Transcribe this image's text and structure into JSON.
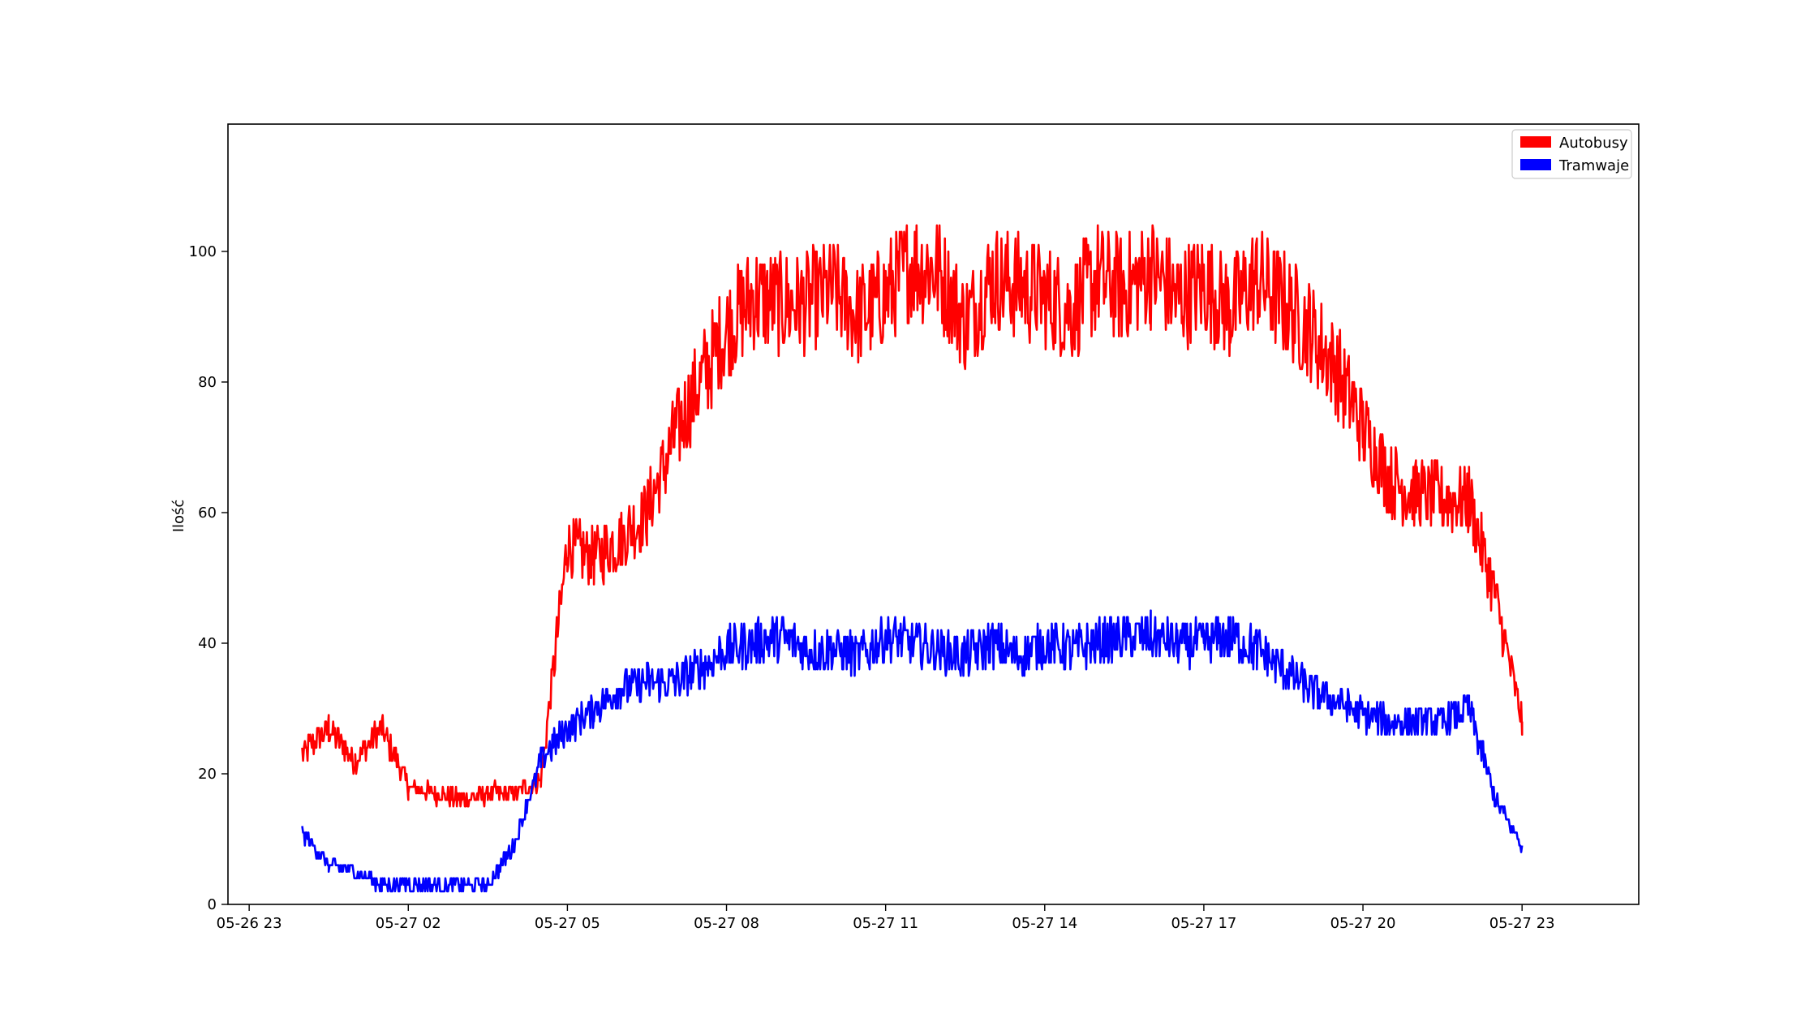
{
  "chart_data": {
    "type": "line",
    "title": "",
    "xlabel": "",
    "ylabel": "Ilość",
    "x_ticks": [
      "05-26 23",
      "05-27 02",
      "05-27 05",
      "05-27 08",
      "05-27 11",
      "05-27 14",
      "05-27 17",
      "05-27 20",
      "05-27 23"
    ],
    "x_unit": "hours since 05-26 23:00",
    "xlim": [
      -0.4,
      26.2
    ],
    "ylim": [
      0,
      119.5
    ],
    "y_ticks": [
      0,
      20,
      40,
      60,
      80,
      100
    ],
    "grid": false,
    "legend_position": "top-right",
    "series": [
      {
        "name": "Autobusy",
        "color": "#ff0000",
        "x": [
          1.0,
          1.5,
          2.0,
          2.5,
          3.0,
          3.5,
          4.0,
          4.5,
          5.0,
          5.5,
          6.0,
          6.5,
          7.0,
          7.5,
          8.0,
          8.5,
          9.0,
          9.5,
          10.0,
          10.5,
          11.0,
          11.5,
          12.0,
          12.5,
          13.0,
          13.5,
          14.0,
          14.5,
          15.0,
          15.5,
          16.0,
          16.5,
          17.0,
          17.5,
          18.0,
          18.5,
          19.0,
          19.5,
          20.0,
          20.5,
          21.0,
          21.5,
          22.0,
          22.5,
          23.0,
          23.5,
          24.0
        ],
        "y": [
          23,
          27,
          22,
          27,
          18,
          17,
          16,
          17,
          17,
          19,
          55,
          53,
          56,
          60,
          71,
          80,
          88,
          93,
          92,
          92,
          94,
          90,
          93,
          98,
          97,
          89,
          96,
          95,
          93,
          91,
          96,
          94,
          97,
          93,
          95,
          91,
          96,
          92,
          88,
          82,
          73,
          65,
          63,
          62,
          62,
          47,
          28
        ]
      },
      {
        "name": "Tramwaje",
        "color": "#0000ff",
        "x": [
          1.0,
          1.5,
          2.0,
          2.5,
          3.0,
          3.5,
          4.0,
          4.5,
          5.0,
          5.5,
          6.0,
          6.5,
          7.0,
          7.5,
          8.0,
          8.5,
          9.0,
          9.5,
          10.0,
          10.5,
          11.0,
          11.5,
          12.0,
          12.5,
          13.0,
          13.5,
          14.0,
          14.5,
          15.0,
          15.5,
          16.0,
          16.5,
          17.0,
          17.5,
          18.0,
          18.5,
          19.0,
          19.5,
          20.0,
          20.5,
          21.0,
          21.5,
          22.0,
          22.5,
          23.0,
          23.5,
          24.0
        ],
        "y": [
          11,
          6,
          5,
          3,
          3,
          3,
          3,
          3,
          9,
          22,
          27,
          30,
          33,
          34,
          34,
          36,
          39,
          40,
          41,
          39,
          39,
          38,
          41,
          40,
          39,
          38,
          40,
          38,
          40,
          39,
          40,
          41,
          41,
          40,
          40,
          41,
          39,
          36,
          33,
          31,
          29,
          28,
          28,
          28,
          30,
          16,
          9
        ]
      }
    ]
  }
}
